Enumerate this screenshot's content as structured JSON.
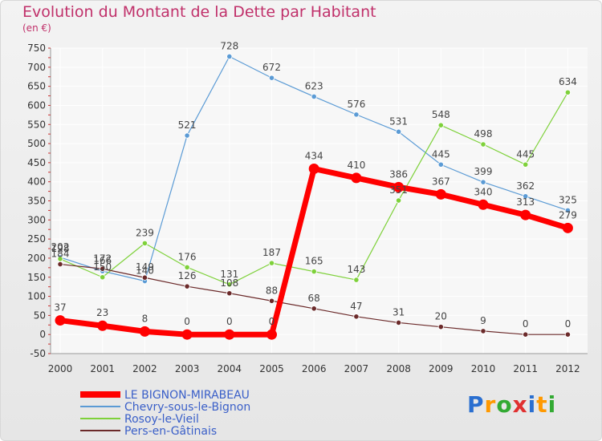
{
  "header": {
    "title": "Evolution du Montant de la Dette par Habitant",
    "unit": "(en €)"
  },
  "branding": {
    "logo_text": "Proxiti"
  },
  "chart_data": {
    "type": "line",
    "title": "Evolution du Montant de la Dette par Habitant",
    "ylabel": "(en €)",
    "xlabel": "",
    "x": [
      "2000",
      "2001",
      "2002",
      "2003",
      "2004",
      "2005",
      "2006",
      "2007",
      "2008",
      "2009",
      "2010",
      "2011",
      "2012"
    ],
    "ylim": [
      -50,
      750
    ],
    "yticks": [
      -50,
      0,
      50,
      100,
      150,
      200,
      250,
      300,
      350,
      400,
      450,
      500,
      550,
      600,
      650,
      700,
      750
    ],
    "grid": true,
    "legend_position": "bottom-left",
    "series": [
      {
        "name": "LE BIGNON-MIRABEAU",
        "color": "#ff0000",
        "emphasis": true,
        "values": [
          37,
          23,
          8,
          0,
          0,
          0,
          434,
          410,
          386,
          367,
          340,
          313,
          279
        ]
      },
      {
        "name": "Chevry-sous-le-Bignon",
        "color": "#5b9bd5",
        "emphasis": false,
        "values": [
          202,
          166,
          140,
          521,
          728,
          672,
          623,
          576,
          531,
          445,
          399,
          362,
          325
        ]
      },
      {
        "name": "Rosoy-le-Vieil",
        "color": "#7ed13a",
        "emphasis": false,
        "values": [
          198,
          150,
          239,
          176,
          131,
          187,
          165,
          143,
          351,
          548,
          498,
          445,
          634
        ]
      },
      {
        "name": "Pers-en-Gâtinais",
        "color": "#6b2a2a",
        "emphasis": false,
        "values": [
          184,
          172,
          149,
          126,
          108,
          88,
          68,
          47,
          31,
          20,
          9,
          0,
          0
        ]
      }
    ]
  }
}
